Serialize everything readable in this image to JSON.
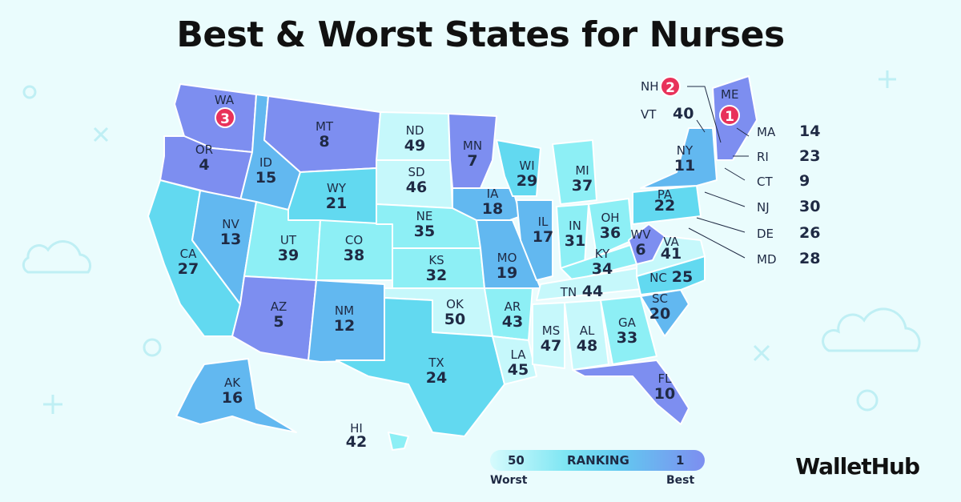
{
  "title": "Best & Worst States for Nurses",
  "brand": "WalletHub",
  "legend": {
    "left_value": "50",
    "label": "RANKING",
    "right_value": "1",
    "left_caption": "Worst",
    "right_caption": "Best",
    "colors": [
      "#d6fbfd",
      "#7fe6f3",
      "#62c9f0",
      "#7d8ef0"
    ]
  },
  "states": [
    {
      "abbr": "WA",
      "rank": "3"
    },
    {
      "abbr": "OR",
      "rank": "4"
    },
    {
      "abbr": "CA",
      "rank": "27"
    },
    {
      "abbr": "ID",
      "rank": "15"
    },
    {
      "abbr": "NV",
      "rank": "13"
    },
    {
      "abbr": "MT",
      "rank": "8"
    },
    {
      "abbr": "WY",
      "rank": "21"
    },
    {
      "abbr": "UT",
      "rank": "39"
    },
    {
      "abbr": "AZ",
      "rank": "5"
    },
    {
      "abbr": "CO",
      "rank": "38"
    },
    {
      "abbr": "NM",
      "rank": "12"
    },
    {
      "abbr": "ND",
      "rank": "49"
    },
    {
      "abbr": "SD",
      "rank": "46"
    },
    {
      "abbr": "NE",
      "rank": "35"
    },
    {
      "abbr": "KS",
      "rank": "32"
    },
    {
      "abbr": "OK",
      "rank": "50"
    },
    {
      "abbr": "TX",
      "rank": "24"
    },
    {
      "abbr": "MN",
      "rank": "7"
    },
    {
      "abbr": "IA",
      "rank": "18"
    },
    {
      "abbr": "MO",
      "rank": "19"
    },
    {
      "abbr": "AR",
      "rank": "43"
    },
    {
      "abbr": "LA",
      "rank": "45"
    },
    {
      "abbr": "WI",
      "rank": "29"
    },
    {
      "abbr": "IL",
      "rank": "17"
    },
    {
      "abbr": "MI",
      "rank": "37"
    },
    {
      "abbr": "IN",
      "rank": "31"
    },
    {
      "abbr": "OH",
      "rank": "36"
    },
    {
      "abbr": "KY",
      "rank": "34"
    },
    {
      "abbr": "TN",
      "rank": "44"
    },
    {
      "abbr": "MS",
      "rank": "47"
    },
    {
      "abbr": "AL",
      "rank": "48"
    },
    {
      "abbr": "GA",
      "rank": "33"
    },
    {
      "abbr": "FL",
      "rank": "10"
    },
    {
      "abbr": "SC",
      "rank": "20"
    },
    {
      "abbr": "NC",
      "rank": "25"
    },
    {
      "abbr": "VA",
      "rank": "41"
    },
    {
      "abbr": "WV",
      "rank": "6"
    },
    {
      "abbr": "PA",
      "rank": "22"
    },
    {
      "abbr": "NY",
      "rank": "11"
    },
    {
      "abbr": "AK",
      "rank": "16"
    },
    {
      "abbr": "HI",
      "rank": "42"
    }
  ],
  "callouts": [
    {
      "abbr": "NH",
      "rank": "2"
    },
    {
      "abbr": "VT",
      "rank": "40"
    },
    {
      "abbr": "ME",
      "rank": "1"
    },
    {
      "abbr": "MA",
      "rank": "14"
    },
    {
      "abbr": "RI",
      "rank": "23"
    },
    {
      "abbr": "CT",
      "rank": "9"
    },
    {
      "abbr": "NJ",
      "rank": "30"
    },
    {
      "abbr": "DE",
      "rank": "26"
    },
    {
      "abbr": "MD",
      "rank": "28"
    }
  ],
  "tier_colors": {
    "best": "#7d8ef0",
    "good": "#62b8f0",
    "mid": "#62d9f0",
    "low": "#8deff5",
    "worst": "#c6f8fb"
  }
}
